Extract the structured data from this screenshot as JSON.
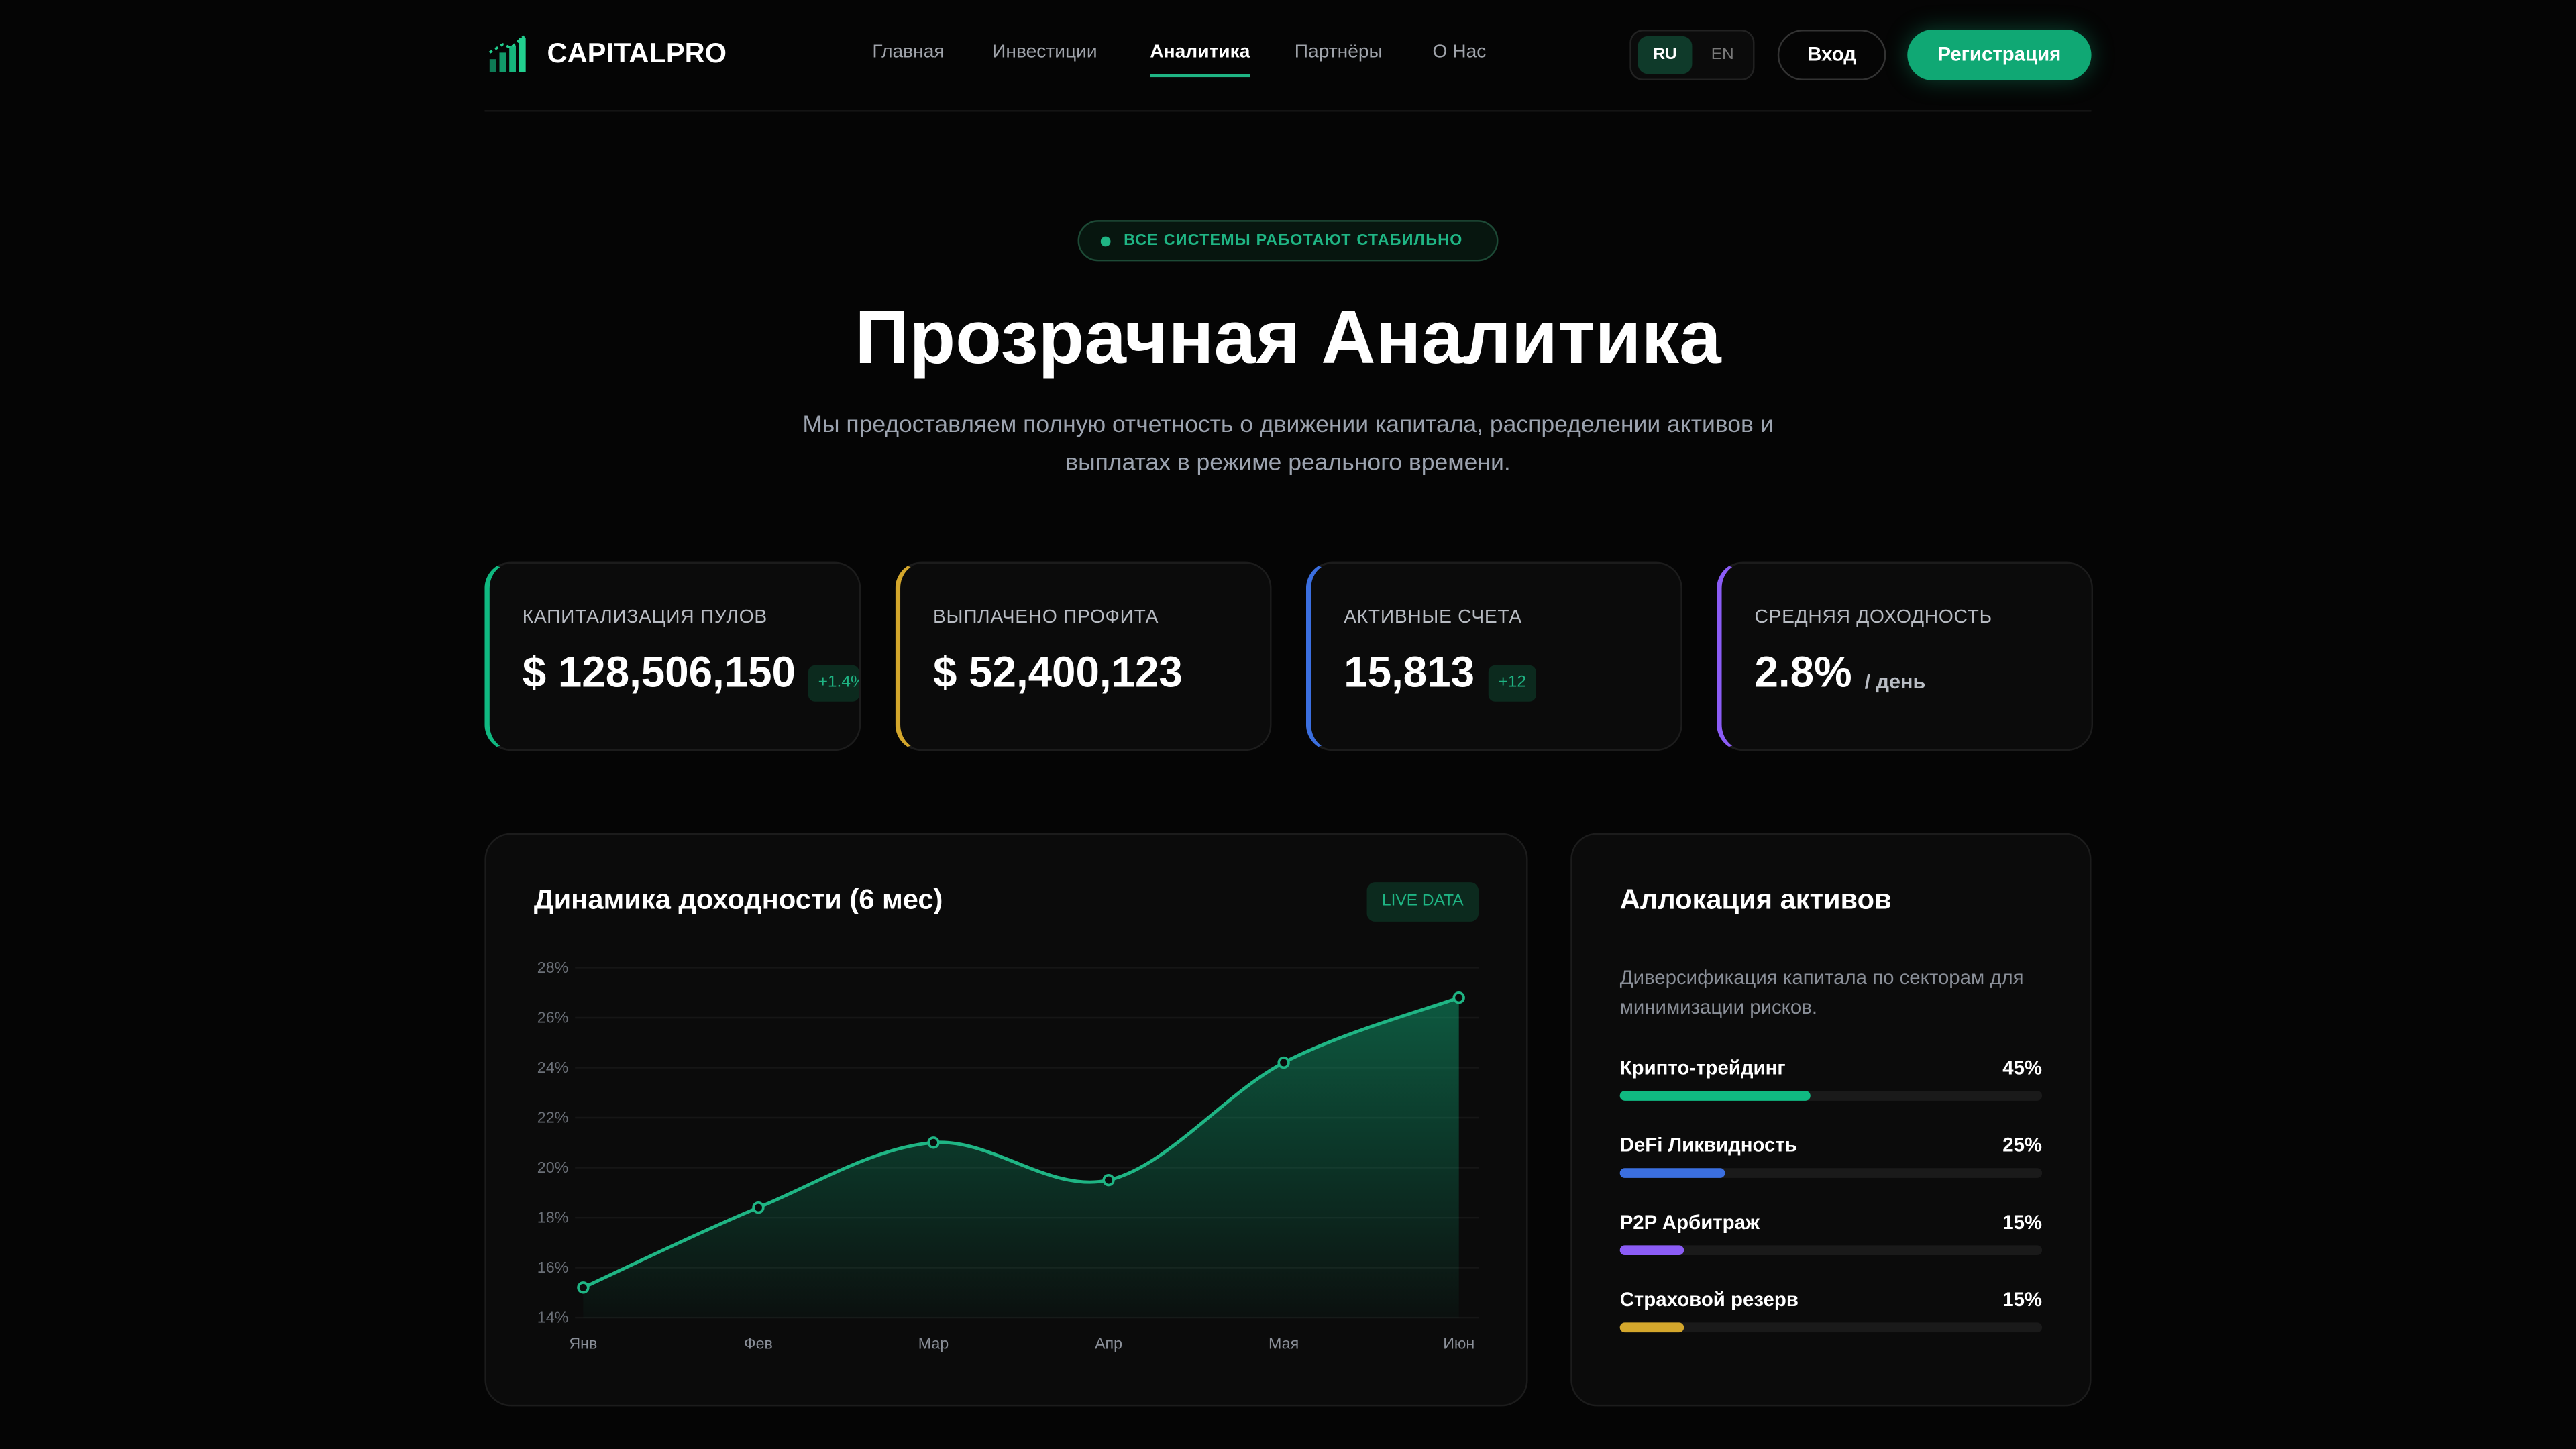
{
  "header": {
    "brand": "CAPITALPRO",
    "nav": [
      "Главная",
      "Инвестиции",
      "Аналитика",
      "Партнёры",
      "О Нас"
    ],
    "active_nav": 2,
    "languages": [
      "RU",
      "EN"
    ],
    "login": "Вход",
    "register": "Регистрация"
  },
  "hero": {
    "status": "ВСЕ СИСТЕМЫ РАБОТАЮТ СТАБИЛЬНО",
    "title": "Прозрачная Аналитика",
    "subtitle": "Мы предоставляем полную отчетность о движении капитала, распределении активов и выплатах в режиме реального времени."
  },
  "stats": [
    {
      "label": "КАПИТАЛИЗАЦИЯ ПУЛОВ",
      "value": "$ 128,506,150",
      "badge": "+1.4%",
      "color": "#10b981"
    },
    {
      "label": "ВЫПЛАЧЕНО ПРОФИТА",
      "value": "$ 52,400,123",
      "color": "#d4a72c"
    },
    {
      "label": "АКТИВНЫЕ СЧЕТА",
      "value": "15,813",
      "badge": "+12",
      "color": "#3b6fe0"
    },
    {
      "label": "СРЕДНЯЯ ДОХОДНОСТЬ",
      "value": "2.8%",
      "suffix": "/ день",
      "color": "#8b5cf6"
    }
  ],
  "chart_data": {
    "type": "line",
    "title": "Динамика доходности (6 мес)",
    "badge": "LIVE DATA",
    "categories": [
      "Янв",
      "Фев",
      "Мар",
      "Апр",
      "Мая",
      "Июн"
    ],
    "values": [
      15.2,
      18.4,
      21.0,
      19.5,
      24.2,
      26.8
    ],
    "color": "#1fb584",
    "ylim": [
      14,
      28
    ],
    "yticks": [
      {
        "value": 14,
        "label": "14%"
      },
      {
        "value": 16,
        "label": "16%"
      },
      {
        "value": 18,
        "label": "18%"
      },
      {
        "value": 20,
        "label": "20%"
      },
      {
        "value": 22,
        "label": "22%"
      },
      {
        "value": 24,
        "label": "24%"
      },
      {
        "value": 26,
        "label": "26%"
      },
      {
        "value": 28,
        "label": "28%"
      }
    ],
    "grid": true
  },
  "allocation": {
    "title": "Аллокация активов",
    "description": "Диверсификация капитала по секторам для минимизации рисков.",
    "items": [
      {
        "name": "Крипто-трейдинг",
        "value": 45,
        "label": "45%",
        "color": "#10b981"
      },
      {
        "name": "DeFi Ликвидность",
        "value": 25,
        "label": "25%",
        "color": "#3b6fe0"
      },
      {
        "name": "P2P Арбитраж",
        "value": 15,
        "label": "15%",
        "color": "#8b5cf6"
      },
      {
        "name": "Страховой резерв",
        "value": 15,
        "label": "15%",
        "color": "#d4a72c"
      }
    ]
  }
}
